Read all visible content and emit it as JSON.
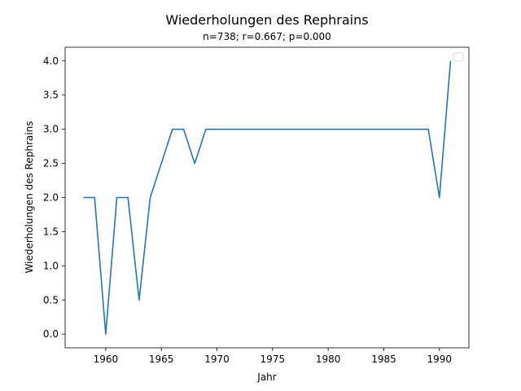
{
  "chart_data": {
    "type": "line",
    "title": "Wiederholungen des Rephrains",
    "subtitle": "n=738; r=0.667; p=0.000",
    "xlabel": "Jahr",
    "ylabel": "Wiederholungen des Rephrains",
    "xlim": [
      1956.35,
      1992.65
    ],
    "ylim": [
      -0.2,
      4.2
    ],
    "xticks": [
      1960,
      1965,
      1970,
      1975,
      1980,
      1985,
      1990
    ],
    "yticks": [
      0.0,
      0.5,
      1.0,
      1.5,
      2.0,
      2.5,
      3.0,
      3.5,
      4.0
    ],
    "xtick_labels": [
      "1960",
      "1965",
      "1970",
      "1975",
      "1980",
      "1985",
      "1990"
    ],
    "ytick_labels": [
      "0.0",
      "0.5",
      "1.0",
      "1.5",
      "2.0",
      "2.5",
      "3.0",
      "3.5",
      "4.0"
    ],
    "grid": false,
    "legend": "top-right (empty)",
    "series": [
      {
        "color": "#1f77b4",
        "x": [
          1958,
          1959,
          1960,
          1961,
          1962,
          1963,
          1964,
          1966,
          1967,
          1968,
          1969,
          1970,
          1975,
          1980,
          1985,
          1989,
          1990,
          1991
        ],
        "y": [
          2.0,
          2.0,
          0.0,
          2.0,
          2.0,
          0.5,
          2.0,
          3.0,
          3.0,
          2.5,
          3.0,
          3.0,
          3.0,
          3.0,
          3.0,
          3.0,
          2.0,
          4.0
        ]
      }
    ]
  }
}
